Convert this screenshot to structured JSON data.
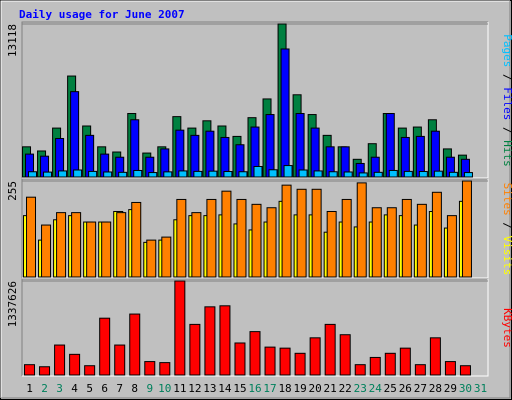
{
  "chart_data": [
    {
      "type": "bar",
      "title": "Daily usage for June 2007",
      "legend_separator": " / ",
      "ylim": [
        0,
        13118
      ],
      "yticks": [
        13118
      ],
      "series": [
        {
          "name": "Hits",
          "color": "#008040",
          "values": [
            2588,
            2231,
            4194,
            8656,
            4373,
            2588,
            2142,
            5443,
            2052,
            2588,
            5176,
            4194,
            4819,
            4373,
            3480,
            5087,
            6693,
            13118,
            7050,
            5354,
            3570,
            2588,
            1517,
            2856,
            5443,
            4194,
            4283,
            4908,
            2409,
            1874,
            null
          ]
        },
        {
          "name": "Files",
          "color": "#0000ff",
          "values": [
            1963,
            1785,
            3302,
            7318,
            3570,
            1963,
            1696,
            4908,
            1696,
            2409,
            4016,
            3570,
            3927,
            3391,
            2766,
            4283,
            5354,
            10977,
            5443,
            4194,
            2588,
            2588,
            1160,
            1696,
            5443,
            3391,
            3480,
            3927,
            1696,
            1517,
            null
          ]
        },
        {
          "name": "Pages",
          "color": "#00c0ff",
          "values": [
            450,
            420,
            520,
            600,
            480,
            430,
            400,
            560,
            380,
            440,
            520,
            480,
            500,
            470,
            450,
            900,
            620,
            980,
            600,
            520,
            450,
            430,
            350,
            400,
            560,
            480,
            470,
            500,
            400,
            380,
            null
          ]
        }
      ]
    },
    {
      "type": "bar",
      "legend_separator": " / ",
      "ylim": [
        0,
        255
      ],
      "yticks": [
        255
      ],
      "series": [
        {
          "name": "Visits",
          "color": "#ffff00",
          "values": [
            163,
            98,
            152,
            163,
            146,
            146,
            174,
            179,
            92,
            98,
            152,
            163,
            163,
            165,
            141,
            125,
            146,
            201,
            165,
            165,
            119,
            146,
            133,
            146,
            165,
            163,
            138,
            174,
            130,
            201,
            null
          ]
        },
        {
          "name": "Sites",
          "color": "#ff8000",
          "values": [
            212,
            138,
            171,
            171,
            146,
            146,
            171,
            198,
            98,
            106,
            206,
            171,
            206,
            228,
            206,
            193,
            184,
            244,
            233,
            233,
            174,
            206,
            250,
            184,
            184,
            206,
            193,
            225,
            163,
            255,
            null
          ]
        }
      ]
    },
    {
      "type": "bar",
      "ylim": [
        0,
        1337626
      ],
      "yticks": [
        1337626
      ],
      "categories": [
        1,
        2,
        3,
        4,
        5,
        6,
        7,
        8,
        9,
        10,
        11,
        12,
        13,
        14,
        15,
        16,
        17,
        18,
        19,
        20,
        21,
        22,
        23,
        24,
        25,
        26,
        27,
        28,
        29,
        30,
        31
      ],
      "category_colors": [
        "#000000",
        "#00805c",
        "#00805c",
        "#000000",
        "#000000",
        "#000000",
        "#000000",
        "#000000",
        "#00805c",
        "#00805c",
        "#000000",
        "#000000",
        "#000000",
        "#000000",
        "#000000",
        "#00805c",
        "#00805c",
        "#000000",
        "#000000",
        "#000000",
        "#000000",
        "#000000",
        "#00805c",
        "#00805c",
        "#000000",
        "#000000",
        "#000000",
        "#000000",
        "#000000",
        "#00805c",
        "#00805c"
      ],
      "series": [
        {
          "name": "KBytes",
          "color": "#ff0000",
          "values": [
            146990,
            117592,
            426271,
            293980,
            132291,
            808445,
            426271,
            867241,
            191087,
            176388,
            1337626,
            720251,
            970134,
            984833,
            455669,
            617358,
            396873,
            382174,
            308679,
            529164,
            720251,
            573261,
            146990,
            249883,
            308679,
            382174,
            146990,
            529164,
            191087,
            132291,
            null
          ]
        }
      ]
    }
  ]
}
